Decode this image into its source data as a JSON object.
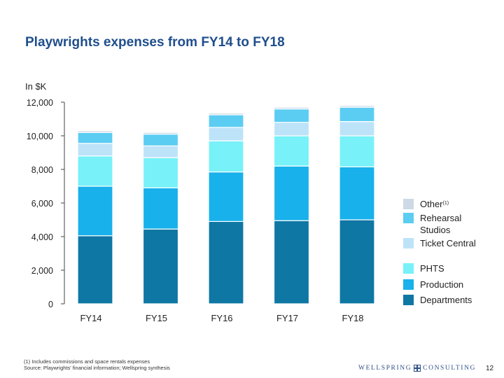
{
  "page": {
    "title": "Playwrights expenses from FY14 to FY18",
    "unit_label": "In $K",
    "footnote_line1": "(1) Includes commissions and space rentals expenses",
    "footnote_line2": "Source: Playwrights' financial information; Wellspring synthesis",
    "brand_left": "WELLSPRING",
    "brand_right": "CONSULTING",
    "page_number": "12"
  },
  "legend": {
    "items": [
      {
        "label": "Other",
        "sup": "(1)",
        "color": "#cdd9e6"
      },
      {
        "label": "Rehearsal Studios",
        "sup": "",
        "color": "#5ccdf2"
      },
      {
        "label": "Ticket Central",
        "sup": "",
        "color": "#bde3f9"
      },
      {
        "label": "PHTS",
        "sup": "",
        "color": "#78f1f8"
      },
      {
        "label": "Production",
        "sup": "",
        "color": "#18b1eb"
      },
      {
        "label": "Departments",
        "sup": "",
        "color": "#0f77a4"
      }
    ]
  },
  "chart_data": {
    "type": "bar",
    "stacked": true,
    "title": "Playwrights expenses from FY14 to FY18",
    "ylabel": "In $K",
    "xlabel": "",
    "ylim": [
      0,
      12000
    ],
    "yticks": [
      0,
      2000,
      4000,
      6000,
      8000,
      10000,
      12000
    ],
    "ytick_labels": [
      "0",
      "2,000",
      "4,000",
      "6,000",
      "8,000",
      "10,000",
      "12,000"
    ],
    "categories": [
      "FY14",
      "FY15",
      "FY16",
      "FY17",
      "FY18"
    ],
    "series": [
      {
        "name": "Departments",
        "color": "#0f77a4",
        "values": [
          4050,
          4450,
          4900,
          4950,
          5000
        ]
      },
      {
        "name": "Production",
        "color": "#18b1eb",
        "values": [
          2950,
          2450,
          2950,
          3250,
          3150
        ]
      },
      {
        "name": "PHTS",
        "color": "#78f1f8",
        "values": [
          1800,
          1800,
          1850,
          1800,
          1850
        ]
      },
      {
        "name": "Ticket Central",
        "color": "#bde3f9",
        "values": [
          750,
          700,
          800,
          800,
          850
        ]
      },
      {
        "name": "Rehearsal Studios",
        "color": "#5ccdf2",
        "values": [
          650,
          700,
          750,
          800,
          850
        ]
      },
      {
        "name": "Other",
        "color": "#cdd9e6",
        "values": [
          100,
          100,
          100,
          100,
          100
        ]
      }
    ]
  }
}
